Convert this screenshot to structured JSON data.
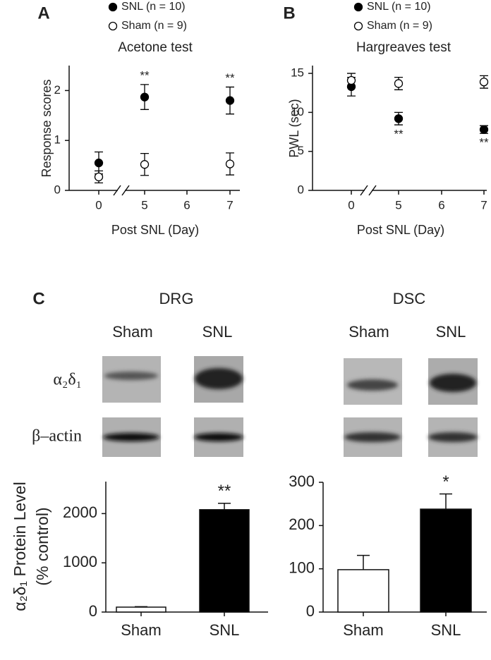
{
  "chart_data": [
    {
      "type": "scatter",
      "panel": "A",
      "title": "Acetone test",
      "xlabel": "Post SNL (Day)",
      "ylabel": "Response scores",
      "categories": [
        "0",
        "5",
        "6",
        "7"
      ],
      "ylim": [
        0,
        2.5
      ],
      "yticks": [
        0,
        1,
        2
      ],
      "series": [
        {
          "name": "SNL (n = 10)",
          "color": "#000000",
          "fill": "#000000",
          "values": [
            0.55,
            1.87,
            null,
            1.8
          ],
          "errors": [
            0.22,
            0.25,
            null,
            0.27
          ],
          "annotations": [
            null,
            "**",
            null,
            "**"
          ]
        },
        {
          "name": "Sham (n = 9)",
          "color": "#000000",
          "fill": "#ffffff",
          "values": [
            0.27,
            0.52,
            null,
            0.53
          ],
          "errors": [
            0.12,
            0.22,
            null,
            0.22
          ]
        }
      ]
    },
    {
      "type": "scatter",
      "panel": "B",
      "title": "Hargreaves test",
      "xlabel": "Post SNL (Day)",
      "ylabel": "PWL (sec)",
      "categories": [
        "0",
        "5",
        "6",
        "7"
      ],
      "ylim": [
        0,
        16
      ],
      "yticks": [
        0,
        5,
        10,
        15
      ],
      "series": [
        {
          "name": "SNL (n = 10)",
          "color": "#000000",
          "fill": "#000000",
          "values": [
            13.3,
            9.2,
            null,
            7.8
          ],
          "errors": [
            1.2,
            0.8,
            null,
            0.5
          ],
          "annotations": [
            null,
            "**",
            null,
            "**"
          ]
        },
        {
          "name": "Sham (n = 9)",
          "color": "#000000",
          "fill": "#ffffff",
          "values": [
            14.1,
            13.7,
            null,
            13.9
          ],
          "errors": [
            0.9,
            0.8,
            null,
            0.8
          ]
        }
      ]
    },
    {
      "type": "bar",
      "ylabel": [
        "α₂δ₁ Protein Level",
        "(% control)"
      ],
      "categories": [
        "Sham",
        "SNL"
      ],
      "values": [
        100,
        2080
      ],
      "errors": [
        10,
        130
      ],
      "colors": [
        "#ffffff",
        "#000000"
      ],
      "annotations": [
        null,
        "**"
      ],
      "ylim": [
        0,
        2650
      ],
      "yticks": [
        0,
        1000,
        2000
      ]
    },
    {
      "type": "bar",
      "categories": [
        "Sham",
        "SNL"
      ],
      "values": [
        98,
        238
      ],
      "errors": [
        33,
        35
      ],
      "colors": [
        "#ffffff",
        "#000000"
      ],
      "annotations": [
        null,
        "*"
      ],
      "ylim": [
        0,
        300
      ],
      "yticks": [
        0,
        100,
        200,
        300
      ]
    }
  ],
  "panel_c": {
    "label": "C",
    "groups": [
      {
        "title": "DRG",
        "lanes": [
          "Sham",
          "SNL"
        ]
      },
      {
        "title": "DSC",
        "lanes": [
          "Sham",
          "SNL"
        ]
      }
    ],
    "rows": [
      "α₂δ₁",
      "β–actin"
    ]
  }
}
